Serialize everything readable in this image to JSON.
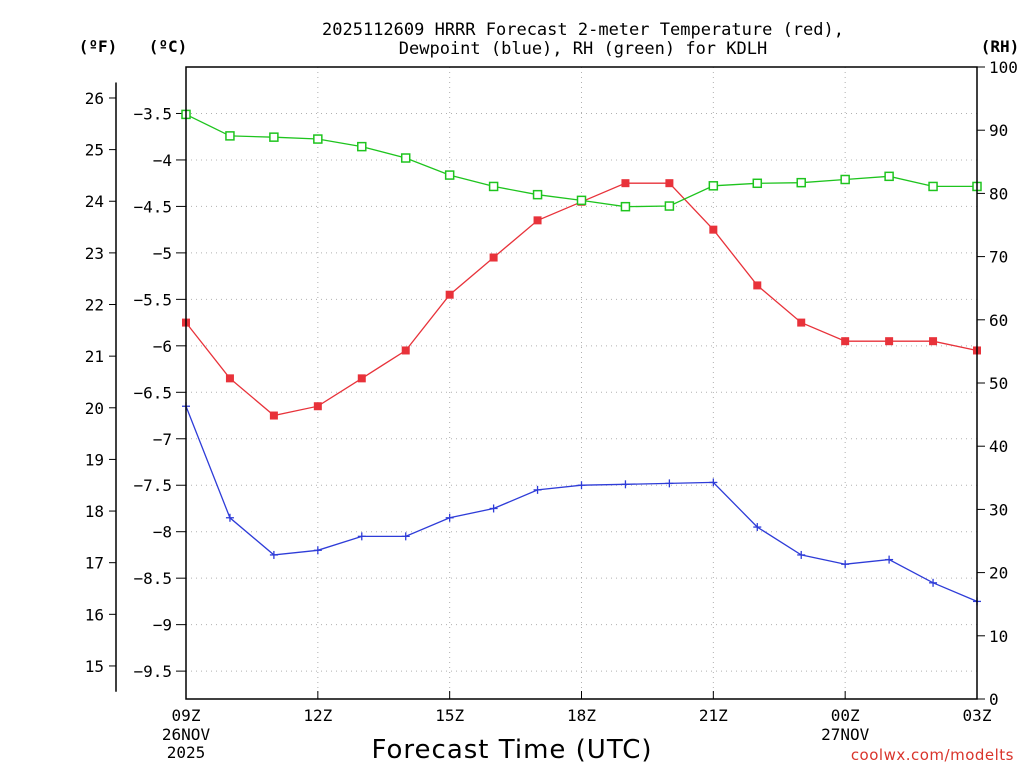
{
  "chart_data": {
    "type": "line",
    "title_line1": "2025112609 HRRR Forecast 2-meter Temperature (red),",
    "title_line2": "Dewpoint (blue), RH (green) for KDLH",
    "xlabel": "Forecast Time (UTC)",
    "credit": "coolwx.com/modelts",
    "units": {
      "fahrenheit": "(ºF)",
      "celsius": "(ºC)",
      "rh": "(RH)"
    },
    "x_hours": [
      0,
      1,
      2,
      3,
      4,
      5,
      6,
      7,
      8,
      9,
      10,
      11,
      12,
      13,
      14,
      15,
      16,
      17,
      18
    ],
    "x_ticks": [
      {
        "hour": 0,
        "label": "09Z",
        "sub1": "26NOV",
        "sub2": "2025"
      },
      {
        "hour": 3,
        "label": "12Z",
        "sub1": "",
        "sub2": ""
      },
      {
        "hour": 6,
        "label": "15Z",
        "sub1": "",
        "sub2": ""
      },
      {
        "hour": 9,
        "label": "18Z",
        "sub1": "",
        "sub2": ""
      },
      {
        "hour": 12,
        "label": "21Z",
        "sub1": "",
        "sub2": ""
      },
      {
        "hour": 15,
        "label": "00Z",
        "sub1": "27NOV",
        "sub2": ""
      },
      {
        "hour": 18,
        "label": "03Z",
        "sub1": "",
        "sub2": ""
      }
    ],
    "celsius_range": [
      -9.8,
      -3.0
    ],
    "celsius_ticks": [
      "-3.5",
      "-4",
      "-4.5",
      "-5",
      "-5.5",
      "-6",
      "-6.5",
      "-7",
      "-7.5",
      "-8",
      "-8.5",
      "-9",
      "-9.5"
    ],
    "fahrenheit_ticks": [
      "26",
      "25",
      "24",
      "23",
      "22",
      "21",
      "20",
      "19",
      "18",
      "17",
      "16",
      "15"
    ],
    "rh_range": [
      0,
      100
    ],
    "rh_ticks": [
      "100",
      "90",
      "80",
      "70",
      "60",
      "50",
      "40",
      "30",
      "20",
      "10",
      "0"
    ],
    "series": [
      {
        "name": "Temperature",
        "unit": "C",
        "color": "#e8323a",
        "marker": "filled-square",
        "values": [
          -5.75,
          -6.35,
          -6.75,
          -6.65,
          -6.35,
          -6.05,
          -5.45,
          -5.05,
          -4.65,
          -4.45,
          -4.25,
          -4.25,
          -4.75,
          -5.35,
          -5.75,
          -5.95,
          -5.95,
          -5.95,
          -6.05
        ]
      },
      {
        "name": "Dewpoint",
        "unit": "C",
        "color": "#2e3cd8",
        "marker": "plus",
        "values": [
          -6.65,
          -7.85,
          -8.25,
          -8.2,
          -8.05,
          -8.05,
          -7.85,
          -7.75,
          -7.55,
          -7.5,
          -7.49,
          -7.48,
          -7.47,
          -7.95,
          -8.25,
          -8.35,
          -8.3,
          -8.55,
          -8.75
        ]
      },
      {
        "name": "RH",
        "unit": "%",
        "color": "#1ec41e",
        "marker": "open-square",
        "values": [
          92.5,
          89.1,
          88.9,
          88.6,
          87.4,
          85.6,
          82.9,
          81.1,
          79.8,
          78.9,
          77.9,
          78,
          81.2,
          81.6,
          81.7,
          82.2,
          82.7,
          81.1,
          81.1
        ]
      }
    ]
  }
}
